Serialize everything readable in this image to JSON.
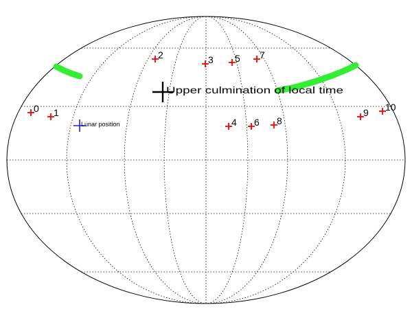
{
  "colors": {
    "star_marker": "#ff0000",
    "lunar_marker": "#1a1aff",
    "culmination_marker": "#000000",
    "track": "#33ee33",
    "grid": "#000000"
  },
  "stars": [
    {
      "id": "0",
      "label": "0"
    },
    {
      "id": "1",
      "label": "1"
    },
    {
      "id": "2",
      "label": "2"
    },
    {
      "id": "3",
      "label": "3"
    },
    {
      "id": "4",
      "label": "4"
    },
    {
      "id": "5",
      "label": "5"
    },
    {
      "id": "6",
      "label": "6"
    },
    {
      "id": "7",
      "label": "7"
    },
    {
      "id": "8",
      "label": "8"
    },
    {
      "id": "9",
      "label": "9"
    },
    {
      "id": "10",
      "label": "10"
    }
  ],
  "lunar": {
    "label": "Lunar position"
  },
  "culmination": {
    "label": "Upper culmination of local time"
  },
  "tracks": [
    {
      "name": "track-left"
    },
    {
      "name": "track-right"
    }
  ]
}
